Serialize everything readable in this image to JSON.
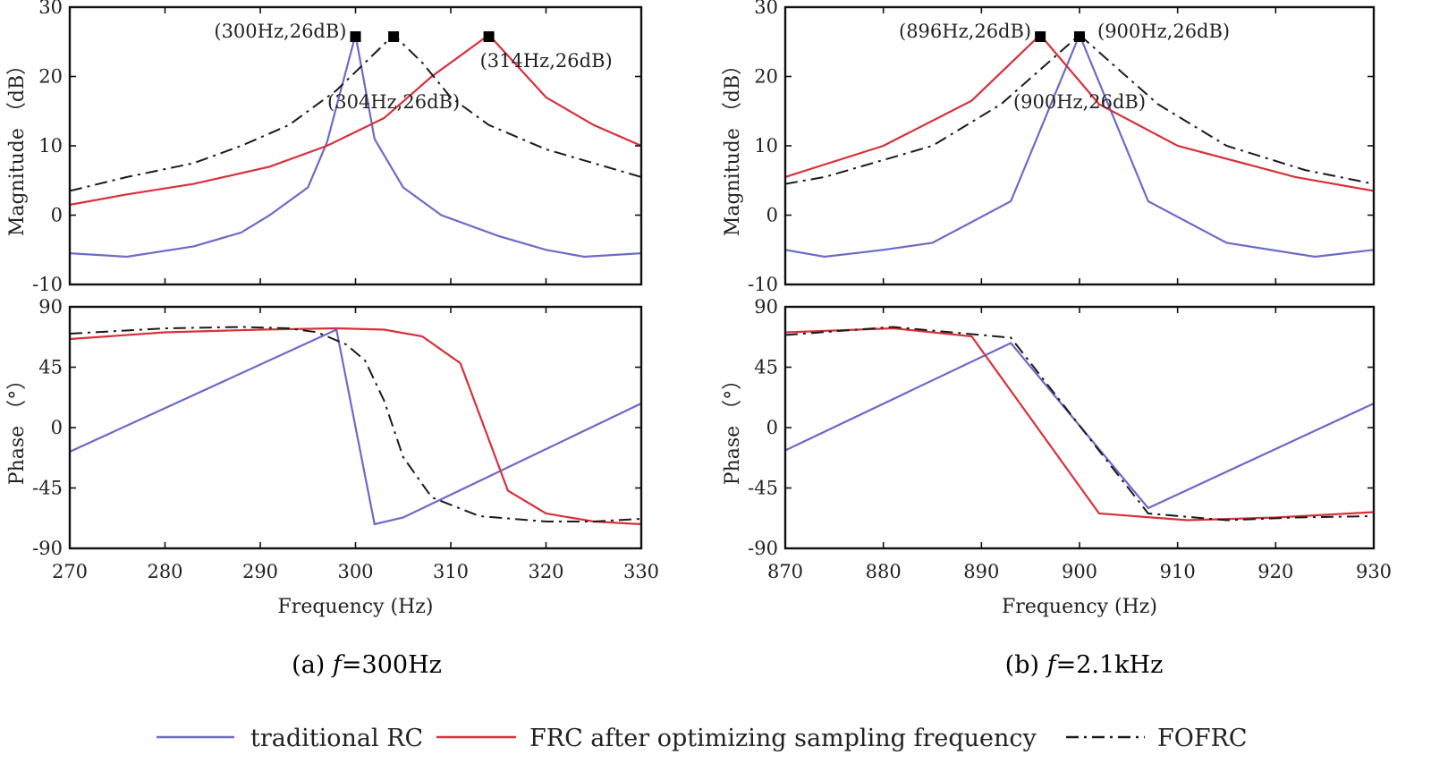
{
  "colors": {
    "traditional": "#6b6bc8",
    "frc": "#d9303a",
    "fofrc": "#1a1a1a",
    "axis": "#111111"
  },
  "legend": {
    "items": [
      {
        "key": "traditional",
        "label": "traditional RC",
        "style": "solid"
      },
      {
        "key": "frc",
        "label": "FRC  after optimizing sampling frequency",
        "style": "solid"
      },
      {
        "key": "fofrc",
        "label": "FOFRC",
        "style": "dashdot"
      }
    ]
  },
  "chart_data": [
    {
      "type": "line",
      "panel": "a",
      "caption_prefix": "(a) ",
      "caption_italic": "f",
      "caption_suffix": "=300Hz",
      "xlabel": "Frequency  (Hz)",
      "xlim": [
        270,
        330
      ],
      "xticks": [
        "270",
        "280",
        "290",
        "300",
        "310",
        "320",
        "330"
      ],
      "magnitude": {
        "ylabel": "Magnitude  （dB）",
        "ylim": [
          -10,
          30
        ],
        "yticks": [
          "-10",
          "0",
          "10",
          "20",
          "30"
        ],
        "series": [
          {
            "key": "traditional",
            "x": [
              270,
              276,
              283,
              288,
              291,
              295,
              297,
              300,
              302,
              305,
              309,
              315,
              320,
              324,
              330
            ],
            "y": [
              -5.5,
              -6,
              -4.5,
              -2.5,
              0,
              4,
              10.5,
              26,
              11,
              4,
              0,
              -3,
              -5,
              -6,
              -5.5
            ]
          },
          {
            "key": "frc",
            "x": [
              270,
              276,
              283,
              291,
              297,
              303,
              308,
              314,
              316,
              320,
              325,
              330
            ],
            "y": [
              1.5,
              3,
              4.5,
              7,
              10,
              14,
              20,
              26,
              23,
              17,
              13,
              10
            ]
          },
          {
            "key": "fofrc",
            "x": [
              270,
              276,
              283,
              288,
              293,
              298,
              301,
              304,
              307,
              310,
              314,
              320,
              325,
              330
            ],
            "y": [
              3.5,
              5.5,
              7.5,
              10,
              13,
              18,
              22,
              26,
              22,
              17,
              13,
              9.5,
              7.5,
              5.5
            ]
          }
        ],
        "markers": [
          {
            "x": 300,
            "y": 26,
            "label": "(300Hz,26dB)",
            "anchor": "left"
          },
          {
            "x": 304,
            "y": 26,
            "label": "(304Hz,26dB)",
            "anchor": "below"
          },
          {
            "x": 314,
            "y": 26,
            "label": "(314Hz,26dB)",
            "anchor": "below-right"
          }
        ]
      },
      "phase": {
        "ylabel": "Phase  （°）",
        "ylim": [
          -90,
          90
        ],
        "yticks": [
          "-90",
          "-45",
          "0",
          "45",
          "90"
        ],
        "series": [
          {
            "key": "traditional",
            "x": [
              270,
              298,
              302,
              305,
              330
            ],
            "y": [
              -18,
              73,
              -72,
              -67,
              18
            ]
          },
          {
            "key": "frc",
            "x": [
              270,
              280,
              290,
              298,
              303,
              307,
              311,
              316,
              320,
              325,
              330
            ],
            "y": [
              66,
              71,
              73,
              74,
              73,
              68,
              48,
              -47,
              -64,
              -70,
              -72
            ]
          },
          {
            "key": "fofrc",
            "x": [
              270,
              280,
              288,
              293,
              296,
              299,
              301,
              303,
              305,
              308,
              313,
              320,
              325,
              330
            ],
            "y": [
              70,
              74,
              75,
              74,
              71,
              62,
              50,
              20,
              -22,
              -52,
              -66,
              -70,
              -70,
              -68
            ]
          }
        ]
      }
    },
    {
      "type": "line",
      "panel": "b",
      "caption_prefix": "(b) ",
      "caption_italic": "f",
      "caption_suffix": "=2.1kHz",
      "xlabel": "Frequency  (Hz)",
      "xlim": [
        870,
        930
      ],
      "xticks": [
        "870",
        "880",
        "890",
        "900",
        "910",
        "920",
        "930"
      ],
      "magnitude": {
        "ylabel": "Magnitude  （dB）",
        "ylim": [
          -10,
          30
        ],
        "yticks": [
          "-10",
          "0",
          "10",
          "20",
          "30"
        ],
        "series": [
          {
            "key": "traditional",
            "x": [
              870,
              874,
              880,
              885,
              893,
              900,
              907,
              915,
              924,
              930
            ],
            "y": [
              -5,
              -6,
              -5,
              -4,
              2,
              26,
              2,
              -4,
              -6,
              -5
            ]
          },
          {
            "key": "frc",
            "x": [
              870,
              880,
              889,
              896,
              902,
              910,
              922,
              930
            ],
            "y": [
              5.5,
              10,
              16.5,
              26,
              16,
              10,
              5.5,
              3.5
            ]
          },
          {
            "key": "fofrc",
            "x": [
              870,
              874,
              885,
              892,
              900,
              908,
              915,
              923,
              930
            ],
            "y": [
              4.5,
              5.5,
              10,
              16,
              26,
              16,
              10,
              6.5,
              4.5
            ]
          }
        ],
        "markers": [
          {
            "x": 896,
            "y": 26,
            "label": "(896Hz,26dB)",
            "anchor": "left"
          },
          {
            "x": 900,
            "y": 26,
            "label": "(900Hz,26dB)",
            "anchor": "right"
          },
          {
            "x": 900,
            "y": 26,
            "label": "(900Hz,26dB)",
            "anchor": "below"
          }
        ]
      },
      "phase": {
        "ylabel": "Phase  （°）",
        "ylim": [
          -90,
          90
        ],
        "yticks": [
          "-90",
          "-45",
          "0",
          "45",
          "90"
        ],
        "series": [
          {
            "key": "traditional",
            "x": [
              870,
              893,
              907,
              930
            ],
            "y": [
              -17,
              63,
              -60,
              18
            ]
          },
          {
            "key": "frc",
            "x": [
              870,
              881,
              889,
              902,
              911,
              920,
              930
            ],
            "y": [
              71,
              74,
              68,
              -64,
              -69,
              -67,
              -63
            ]
          },
          {
            "key": "fofrc",
            "x": [
              870,
              881,
              893,
              907,
              915,
              922,
              930
            ],
            "y": [
              69,
              75,
              67,
              -64,
              -69,
              -67,
              -66
            ]
          }
        ]
      }
    }
  ]
}
